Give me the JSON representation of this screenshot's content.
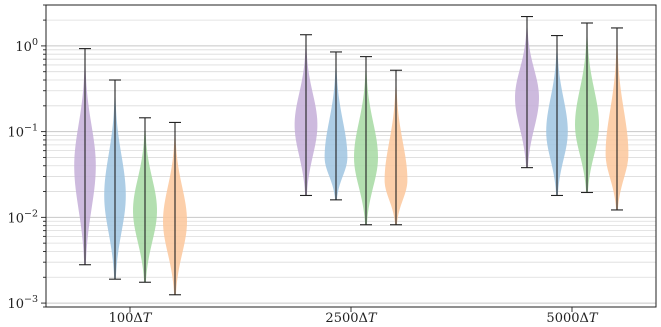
{
  "chart_data": {
    "type": "violin",
    "title": "",
    "xlabel": "",
    "ylabel": "",
    "y_scale": "log",
    "ylim": [
      0.0009,
      3.0
    ],
    "grid": "horizontal major and minor",
    "legend": "none",
    "categories": [
      "100ΔT",
      "2500ΔT",
      "5000ΔT"
    ],
    "y_ticks": [
      {
        "value": 0.001,
        "base": "10",
        "exp": "−3"
      },
      {
        "value": 0.01,
        "base": "10",
        "exp": "−2"
      },
      {
        "value": 0.1,
        "base": "10",
        "exp": "−1"
      },
      {
        "value": 1,
        "base": "10",
        "exp": "0"
      }
    ],
    "series": [
      {
        "color": "#c4aed8",
        "min": [
          0.0028,
          0.018,
          0.038
        ],
        "max": [
          0.93,
          1.35,
          2.2
        ],
        "peak": [
          0.04,
          0.12,
          0.25
        ],
        "width": [
          0.9,
          0.95,
          1.0
        ]
      },
      {
        "color": "#9fc4e0",
        "min": [
          0.0019,
          0.016,
          0.018
        ],
        "max": [
          0.4,
          0.85,
          1.32
        ],
        "peak": [
          0.018,
          0.05,
          0.1
        ],
        "width": [
          0.9,
          0.95,
          0.9
        ]
      },
      {
        "color": "#a6d9a2",
        "min": [
          0.00175,
          0.0082,
          0.0195
        ],
        "max": [
          0.145,
          0.75,
          1.85
        ],
        "peak": [
          0.012,
          0.05,
          0.12
        ],
        "width": [
          1.0,
          1.0,
          1.0
        ]
      },
      {
        "color": "#fbc79b",
        "min": [
          0.00125,
          0.0082,
          0.0122
        ],
        "max": [
          0.128,
          0.52,
          1.62
        ],
        "peak": [
          0.009,
          0.027,
          0.055
        ],
        "width": [
          1.0,
          0.95,
          0.95
        ]
      }
    ]
  }
}
